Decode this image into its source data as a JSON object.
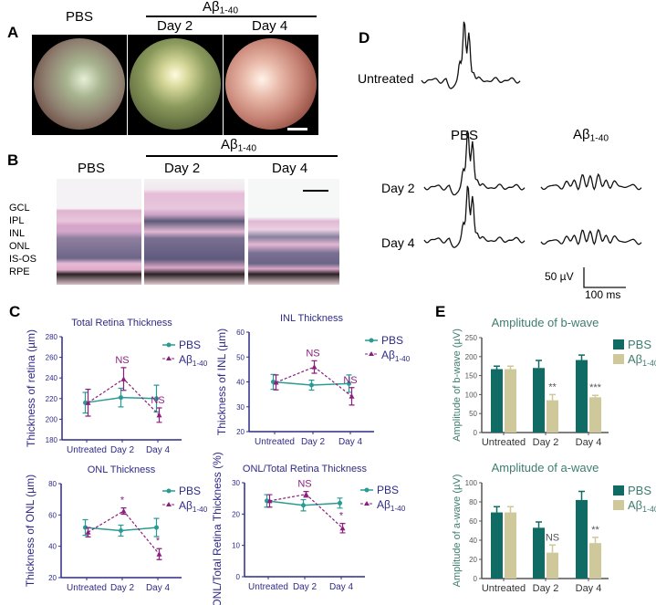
{
  "panel_labels": {
    "A": "A",
    "B": "B",
    "C": "C",
    "D": "D",
    "E": "E"
  },
  "treatment": {
    "base": "Aβ",
    "sub": "1-40"
  },
  "panelA": {
    "pbs": "PBS",
    "day2": "Day 2",
    "day4": "Day 4"
  },
  "panelB": {
    "pbs": "PBS",
    "day2": "Day 2",
    "day4": "Day 4",
    "layers": [
      "GCL",
      "IPL",
      "INL",
      "ONL",
      "IS-OS",
      "RPE"
    ]
  },
  "panelD": {
    "untreated": "Untreated",
    "pbs": "PBS",
    "day2": "Day 2",
    "day4": "Day 4",
    "scale_v": "50 µV",
    "scale_t": "100 ms"
  },
  "colors": {
    "pbs_line": "#2a9b94",
    "abeta_line": "#8a1f7e",
    "pbs_bar": "#0f6b63",
    "abeta_bar": "#cfc89a",
    "c_text": "#2e2b86",
    "e_text": "#3d7d70"
  },
  "chart_data": [
    {
      "id": "trt",
      "type": "line",
      "title": "Total Retina Thickness",
      "ylabel": "Thickness of retina (µm)",
      "categories": [
        "Untreated",
        "Day 2",
        "Day 4"
      ],
      "ylim": [
        180,
        280
      ],
      "yticks": [
        180,
        200,
        220,
        240,
        260,
        280
      ],
      "series": [
        {
          "name": "PBS",
          "values": [
            216,
            221,
            220
          ],
          "errors": [
            10,
            9,
            13
          ]
        },
        {
          "name": "Aβ1-40",
          "values": [
            216,
            239,
            204
          ],
          "errors": [
            13,
            11,
            7
          ]
        }
      ],
      "annotations": [
        "",
        "NS",
        "NS"
      ],
      "legend": "top-right"
    },
    {
      "id": "inl",
      "type": "line",
      "title": "INL Thickness",
      "ylabel": "Thickness of INL (µm)",
      "categories": [
        "Untreated",
        "Day 2",
        "Day 4"
      ],
      "ylim": [
        20,
        60
      ],
      "yticks": [
        20,
        30,
        40,
        50,
        60
      ],
      "series": [
        {
          "name": "PBS",
          "values": [
            40,
            38.7,
            39.3
          ],
          "errors": [
            3,
            2,
            3.5
          ]
        },
        {
          "name": "Aβ1-40",
          "values": [
            39.8,
            46,
            34.2
          ],
          "errors": [
            3,
            2.5,
            3.5
          ]
        }
      ],
      "annotations": [
        "",
        "NS",
        "NS"
      ],
      "legend": "top-right"
    },
    {
      "id": "onl",
      "type": "line",
      "title": "ONL Thickness",
      "ylabel": "Thickness of ONL (µm)",
      "categories": [
        "Untreated",
        "Day 2",
        "Day 4"
      ],
      "ylim": [
        20,
        80
      ],
      "yticks": [
        20,
        40,
        60,
        80
      ],
      "series": [
        {
          "name": "PBS",
          "values": [
            52,
            50,
            52
          ],
          "errors": [
            5,
            3.5,
            5.8
          ]
        },
        {
          "name": "Aβ1-40",
          "values": [
            49,
            62.5,
            35
          ],
          "errors": [
            3,
            2,
            3.5
          ]
        }
      ],
      "annotations": [
        "",
        "*",
        "*"
      ],
      "legend": "top-right"
    },
    {
      "id": "ratio",
      "type": "line",
      "title": "ONL/Total Retina Thickness",
      "ylabel": "ONL/Total Retina Thickness (%)",
      "categories": [
        "Untreated",
        "Day 2",
        "Day 4"
      ],
      "ylim": [
        0,
        30
      ],
      "yticks": [
        0,
        10,
        20,
        30
      ],
      "series": [
        {
          "name": "PBS",
          "values": [
            24.2,
            22.8,
            23.5
          ],
          "errors": [
            2,
            1.8,
            1.6
          ]
        },
        {
          "name": "Aβ1-40",
          "values": [
            24.2,
            26.3,
            15.5
          ],
          "errors": [
            2,
            0.9,
            1.5
          ]
        }
      ],
      "annotations": [
        "",
        "NS",
        "*"
      ],
      "legend": "top-right"
    },
    {
      "id": "bwave",
      "type": "bar",
      "title": "Amplitude of b-wave",
      "ylabel": "Amplitude of b-wave (µV)",
      "categories": [
        "Untreated",
        "Day 2",
        "Day 4"
      ],
      "ylim": [
        0,
        250
      ],
      "yticks": [
        0,
        50,
        100,
        150,
        200,
        250
      ],
      "series": [
        {
          "name": "PBS",
          "values": [
            167,
            170,
            191
          ],
          "errors": [
            8,
            20,
            13
          ]
        },
        {
          "name": "Aβ1-40",
          "values": [
            167,
            85,
            93
          ],
          "errors": [
            8,
            15,
            5
          ]
        }
      ],
      "annotations": [
        "",
        "**",
        "***"
      ],
      "legend": "top-right"
    },
    {
      "id": "awave",
      "type": "bar",
      "title": "Amplitude of a-wave",
      "ylabel": "Amplitude of a-wave (µV)",
      "categories": [
        "Untreated",
        "Day 2",
        "Day 4"
      ],
      "ylim": [
        0,
        100
      ],
      "yticks": [
        0,
        20,
        40,
        60,
        80,
        100
      ],
      "series": [
        {
          "name": "PBS",
          "values": [
            69,
            53,
            82
          ],
          "errors": [
            6,
            6,
            9
          ]
        },
        {
          "name": "Aβ1-40",
          "values": [
            69,
            27,
            37
          ],
          "errors": [
            6,
            8,
            6
          ]
        }
      ],
      "annotations": [
        "",
        "NS",
        "**"
      ],
      "legend": "top-right"
    }
  ]
}
